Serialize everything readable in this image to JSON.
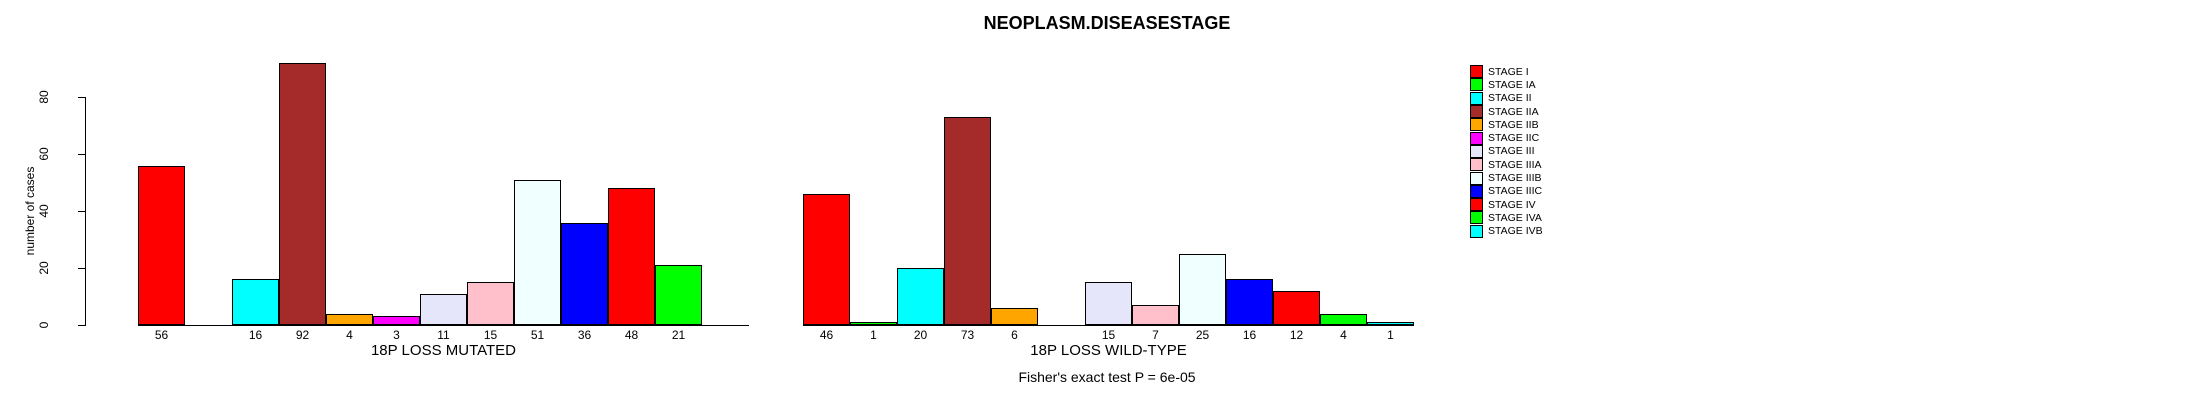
{
  "title": "NEOPLASM.DISEASESTAGE",
  "annotation": "Fisher's exact test P = 6e-05",
  "chart_data": {
    "type": "bar",
    "title": "NEOPLASM.DISEASESTAGE",
    "ylabel": "number of cases",
    "ylim": [
      0,
      96
    ],
    "yticks": [
      0,
      20,
      40,
      60,
      80
    ],
    "grid": false,
    "legend_position": "right",
    "categories": [
      "STAGE I",
      "STAGE IA",
      "STAGE II",
      "STAGE IIA",
      "STAGE IIB",
      "STAGE IIC",
      "STAGE III",
      "STAGE IIIA",
      "STAGE IIIB",
      "STAGE IIIC",
      "STAGE IV",
      "STAGE IVA",
      "STAGE IVB"
    ],
    "palette": [
      "#FF0000",
      "#00FF00",
      "#00FFFF",
      "#A52A2A",
      "#FFA500",
      "#FF00FF",
      "#E6E6FA",
      "#FFC0CB",
      "#F0FFFF",
      "#0000FF",
      "#FF0000",
      "#00FF00",
      "#00FFFF"
    ],
    "groups": [
      {
        "xlabel": "18P LOSS MUTATED",
        "values": [
          56,
          0,
          16,
          92,
          4,
          3,
          11,
          15,
          51,
          36,
          48,
          21,
          0
        ]
      },
      {
        "xlabel": "18P LOSS WILD-TYPE",
        "values": [
          46,
          1,
          20,
          73,
          6,
          0,
          15,
          7,
          25,
          16,
          12,
          4,
          1
        ]
      }
    ],
    "annotation": "Fisher's exact test P = 6e-05"
  },
  "legend": {
    "items": [
      {
        "label": "STAGE I",
        "color": "#FF0000"
      },
      {
        "label": "STAGE IA",
        "color": "#00FF00"
      },
      {
        "label": "STAGE II",
        "color": "#00FFFF"
      },
      {
        "label": "STAGE IIA",
        "color": "#A52A2A"
      },
      {
        "label": "STAGE IIB",
        "color": "#FFA500"
      },
      {
        "label": "STAGE IIC",
        "color": "#FF00FF"
      },
      {
        "label": "STAGE III",
        "color": "#E6E6FA"
      },
      {
        "label": "STAGE IIIA",
        "color": "#FFC0CB"
      },
      {
        "label": "STAGE IIIB",
        "color": "#F0FFFF"
      },
      {
        "label": "STAGE IIIC",
        "color": "#0000FF"
      },
      {
        "label": "STAGE IV",
        "color": "#FF0000"
      },
      {
        "label": "STAGE IVA",
        "color": "#00FF00"
      },
      {
        "label": "STAGE IVB",
        "color": "#00FFFF"
      }
    ]
  }
}
